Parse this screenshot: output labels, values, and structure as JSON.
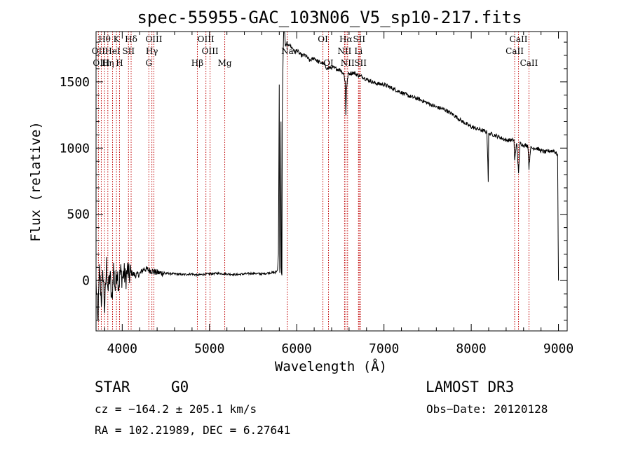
{
  "chart_data": {
    "type": "line",
    "title": "spec-55955-GAC_103N06_V5_sp10-217.fits",
    "xlabel": "Wavelength (Å)",
    "ylabel": "Flux (relative)",
    "xlim": [
      3700,
      9100
    ],
    "ylim": [
      -380,
      1880
    ],
    "x_ticks": [
      4000,
      5000,
      6000,
      7000,
      8000,
      9000
    ],
    "y_ticks": [
      0,
      500,
      1000,
      1500
    ],
    "x_tick_labels": [
      "4000",
      "5000",
      "6000",
      "7000",
      "8000",
      "9000"
    ],
    "y_tick_labels": [
      "0",
      "500",
      "1000",
      "1500"
    ],
    "series": [
      {
        "name": "flux",
        "x": [
          3700,
          3720,
          3740,
          3760,
          3780,
          3800,
          3820,
          3840,
          3860,
          3880,
          3900,
          3920,
          3940,
          3960,
          3980,
          4000,
          4020,
          4040,
          4060,
          4080,
          4100,
          4150,
          4200,
          4250,
          4300,
          4350,
          4400,
          4500,
          4600,
          4700,
          4800,
          4860,
          4900,
          5000,
          5100,
          5200,
          5300,
          5400,
          5500,
          5600,
          5700,
          5760,
          5780,
          5790,
          5800,
          5805,
          5810,
          5815,
          5820,
          5825,
          5830,
          5835,
          5845,
          5850,
          5860,
          5870,
          5880,
          5890,
          5900,
          5910,
          5920,
          5940,
          5960,
          5980,
          6000,
          6050,
          6100,
          6150,
          6200,
          6250,
          6300,
          6350,
          6400,
          6450,
          6500,
          6540,
          6555,
          6563,
          6570,
          6590,
          6650,
          6700,
          6750,
          6800,
          6900,
          7000,
          7100,
          7200,
          7300,
          7400,
          7500,
          7600,
          7700,
          7800,
          7900,
          8000,
          8100,
          8180,
          8190,
          8195,
          8200,
          8220,
          8300,
          8400,
          8490,
          8498,
          8520,
          8542,
          8560,
          8600,
          8650,
          8662,
          8680,
          8750,
          8800,
          8850,
          8900,
          8950,
          8975,
          8990,
          9000
        ],
        "y": [
          0,
          -320,
          80,
          -150,
          60,
          -220,
          120,
          -80,
          50,
          -180,
          100,
          -60,
          90,
          -40,
          70,
          20,
          60,
          10,
          80,
          30,
          60,
          40,
          50,
          90,
          80,
          70,
          60,
          55,
          50,
          45,
          50,
          40,
          45,
          50,
          55,
          50,
          45,
          50,
          55,
          50,
          60,
          60,
          80,
          200,
          1480,
          60,
          100,
          700,
          1200,
          60,
          40,
          1300,
          1730,
          1880,
          1880,
          1780,
          1770,
          1800,
          1760,
          1790,
          1780,
          1760,
          1750,
          1720,
          1740,
          1700,
          1700,
          1660,
          1680,
          1650,
          1640,
          1600,
          1610,
          1600,
          1590,
          1560,
          1500,
          1250,
          1450,
          1560,
          1570,
          1550,
          1540,
          1520,
          1490,
          1480,
          1450,
          1420,
          1390,
          1370,
          1340,
          1310,
          1290,
          1250,
          1200,
          1160,
          1140,
          1120,
          900,
          750,
          1100,
          1110,
          1090,
          1060,
          1060,
          900,
          1050,
          820,
          1040,
          1020,
          1020,
          850,
          1000,
          1000,
          980,
          970,
          980,
          980,
          960,
          950,
          0
        ]
      }
    ],
    "spectral_lines": [
      {
        "label": "Hθ",
        "wavelength": 3797,
        "row": 1
      },
      {
        "label": "K",
        "wavelength": 3934,
        "row": 1
      },
      {
        "label": "Hδ",
        "wavelength": 4102,
        "row": 1
      },
      {
        "label": "OIII",
        "wavelength": 4363,
        "row": 1
      },
      {
        "label": "OIII",
        "wavelength": 4959,
        "row": 1
      },
      {
        "label": "OI",
        "wavelength": 6300,
        "row": 1
      },
      {
        "label": "Hα",
        "wavelength": 6563,
        "row": 1
      },
      {
        "label": "SII",
        "wavelength": 6716,
        "row": 1
      },
      {
        "label": "CaII",
        "wavelength": 8542,
        "row": 1
      },
      {
        "label": "OII",
        "wavelength": 3727,
        "row": 2
      },
      {
        "label": "HeI",
        "wavelength": 3889,
        "row": 2
      },
      {
        "label": "SII",
        "wavelength": 4072,
        "row": 2
      },
      {
        "label": "Hγ",
        "wavelength": 4340,
        "row": 2
      },
      {
        "label": "OIII",
        "wavelength": 5007,
        "row": 2
      },
      {
        "label": "Na",
        "wavelength": 5893,
        "row": 2
      },
      {
        "label": "NII",
        "wavelength": 6548,
        "row": 2
      },
      {
        "label": "Li",
        "wavelength": 6708,
        "row": 2
      },
      {
        "label": "CaII",
        "wavelength": 8498,
        "row": 2
      },
      {
        "label": "OIII",
        "wavelength": 3760,
        "row": 3
      },
      {
        "label": "Hη",
        "wavelength": 3835,
        "row": 3
      },
      {
        "label": "H",
        "wavelength": 3969,
        "row": 3
      },
      {
        "label": "G",
        "wavelength": 4305,
        "row": 3
      },
      {
        "label": "Hβ",
        "wavelength": 4861,
        "row": 3
      },
      {
        "label": "Mg",
        "wavelength": 5175,
        "row": 3
      },
      {
        "label": "OI",
        "wavelength": 6364,
        "row": 3
      },
      {
        "label": "NII",
        "wavelength": 6583,
        "row": 3
      },
      {
        "label": "SII",
        "wavelength": 6731,
        "row": 3
      },
      {
        "label": "CaII",
        "wavelength": 8662,
        "row": 3
      }
    ]
  },
  "info": {
    "class": "STAR",
    "subclass": "G0",
    "survey": "LAMOST DR3",
    "cz": "cz = −164.2 ± 205.1 km/s",
    "obs_date": "Obs−Date: 20120128",
    "coords": "RA = 102.21989, DEC =   6.27641"
  },
  "colors": {
    "line_marker": "#c00000",
    "spectrum": "#000000"
  }
}
